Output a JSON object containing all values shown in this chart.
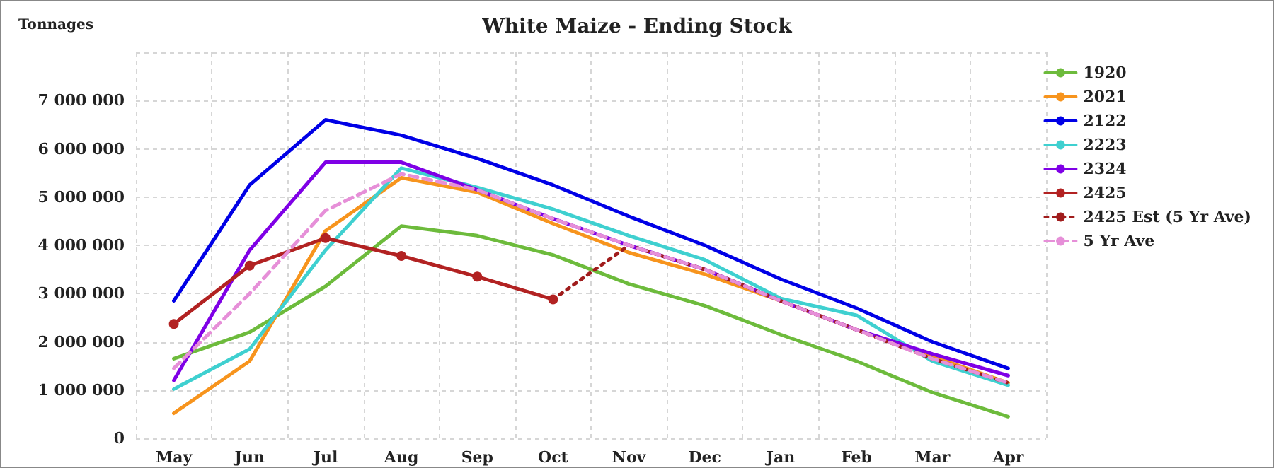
{
  "chart_data": {
    "type": "line",
    "title": "White Maize - Ending Stock",
    "ylabel": "Tonnages",
    "categories": [
      "May",
      "Jun",
      "Jul",
      "Aug",
      "Sep",
      "Oct",
      "Nov",
      "Dec",
      "Jan",
      "Feb",
      "Mar",
      "Apr"
    ],
    "series": [
      {
        "name": "1920",
        "color": "#6dbb3c",
        "values": [
          1650000,
          2200000,
          3150000,
          4400000,
          4200000,
          3800000,
          3200000,
          2750000,
          2150000,
          1600000,
          950000,
          450000
        ]
      },
      {
        "name": "2021",
        "color": "#f7941d",
        "values": [
          520000,
          1600000,
          4300000,
          5400000,
          5100000,
          4450000,
          3850000,
          3400000,
          2850000,
          2250000,
          1700000,
          1150000
        ]
      },
      {
        "name": "2122",
        "color": "#0000e6",
        "values": [
          2850000,
          5250000,
          6600000,
          6280000,
          5800000,
          5250000,
          4600000,
          4000000,
          3300000,
          2700000,
          2000000,
          1450000
        ]
      },
      {
        "name": "2223",
        "color": "#3fd0d0",
        "values": [
          1020000,
          1850000,
          3900000,
          5600000,
          5200000,
          4750000,
          4200000,
          3700000,
          2900000,
          2550000,
          1600000,
          1100000
        ]
      },
      {
        "name": "2324",
        "color": "#7f00e6",
        "values": [
          1200000,
          3900000,
          5720000,
          5720000,
          5150000,
          4550000,
          4000000,
          3500000,
          2850000,
          2250000,
          1750000,
          1300000
        ]
      },
      {
        "name": "2425",
        "color": "#b22222",
        "marker": "circle",
        "values": [
          2370000,
          3580000,
          4150000,
          3780000,
          3350000,
          2880000,
          null,
          null,
          null,
          null,
          null,
          null
        ]
      },
      {
        "name": "2425 Est (5 Yr Ave)",
        "color": "#a01c1c",
        "line_style": "dotted",
        "values": [
          null,
          null,
          null,
          null,
          null,
          2880000,
          4000000,
          3500000,
          2850000,
          2250000,
          1650000,
          1150000
        ]
      },
      {
        "name": "5 Yr Ave",
        "color": "#e68fd8",
        "line_style": "dashed",
        "values": [
          1450000,
          3000000,
          4720000,
          5480000,
          5150000,
          4550000,
          4000000,
          3500000,
          2850000,
          2250000,
          1650000,
          1150000
        ]
      }
    ],
    "ylim": [
      0,
      8000000
    ],
    "yticks": [
      {
        "value": 0,
        "label": "0"
      },
      {
        "value": 1000000,
        "label": "1 000 000"
      },
      {
        "value": 2000000,
        "label": "2 000 000"
      },
      {
        "value": 3000000,
        "label": "3 000 000"
      },
      {
        "value": 4000000,
        "label": "4 000 000"
      },
      {
        "value": 5000000,
        "label": "5 000 000"
      },
      {
        "value": 6000000,
        "label": "6 000 000"
      },
      {
        "value": 7000000,
        "label": "7 000 000"
      },
      {
        "value": 8000000,
        "label": null
      }
    ],
    "grid": true,
    "legend": "right",
    "marker": "none",
    "line_style": "solid"
  }
}
